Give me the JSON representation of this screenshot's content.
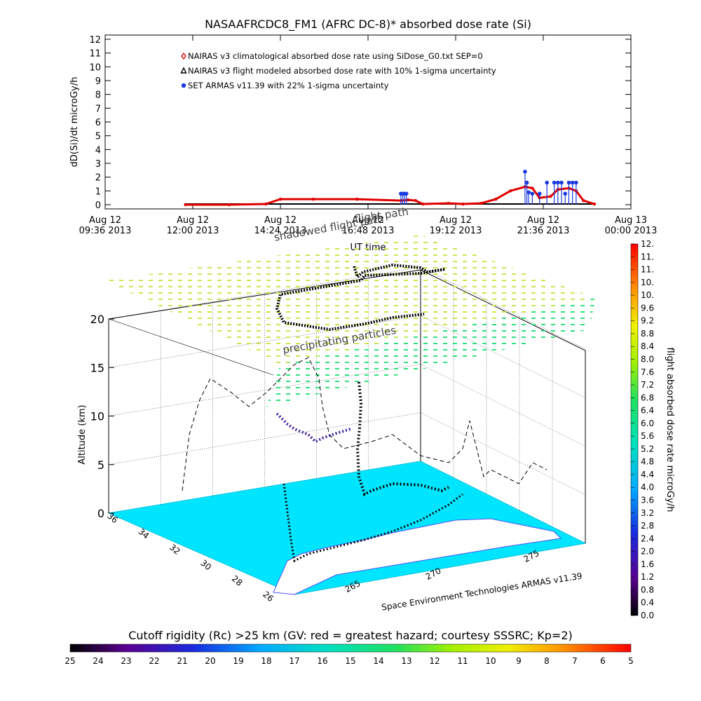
{
  "chart_data": [
    {
      "type": "line",
      "title": "NASAAFRCDC8_FM1 (AFRC DC-8)* absorbed dose rate (Si)",
      "xlabel": "UT time",
      "ylabel": "dD(Si)/dt microGy/h",
      "ylim": [
        0,
        12
      ],
      "y_ticks": [
        "0",
        "1",
        "2",
        "3",
        "4",
        "5",
        "6",
        "7",
        "8",
        "9",
        "10",
        "11",
        "12"
      ],
      "x_ticks": [
        {
          "line1": "Aug 12",
          "line2": "09:36 2013"
        },
        {
          "line1": "Aug 12",
          "line2": "12:00 2013"
        },
        {
          "line1": "Aug 12",
          "line2": "14:24 2013"
        },
        {
          "line1": "Aug 12",
          "line2": "16:48 2013"
        },
        {
          "line1": "Aug 12",
          "line2": "19:12 2013"
        },
        {
          "line1": "Aug 12",
          "line2": "21:36 2013"
        },
        {
          "line1": "Aug 13",
          "line2": "00:00 2013"
        }
      ],
      "x_unit": "hours since Aug 12 00:00 UT",
      "legend": [
        {
          "marker": "diamond",
          "color": "#e00000",
          "label": "NAIRAS v3 climatological absorbed dose rate using SiDose_G0.txt SEP=0"
        },
        {
          "marker": "triangle",
          "color": "#000000",
          "label": "NAIRAS v3 flight modeled absorbed dose rate with 10% 1-sigma uncertainty"
        },
        {
          "marker": "dot",
          "color": "#1a3adf",
          "label": "SET ARMAS v11.39 with 22% 1-sigma uncertainty"
        }
      ],
      "legend_position": "top-left",
      "series": [
        {
          "name": "NAIRAS v3 climatological absorbed dose rate using SiDose_G0.txt SEP=0",
          "color": "#e00000",
          "x": [
            11.8,
            13.0,
            14.0,
            14.4,
            15.3,
            16.5,
            17.7,
            17.9,
            18.1,
            18.3,
            19.0,
            19.4,
            19.9,
            20.3,
            20.7,
            21.1,
            21.3,
            21.5,
            21.8,
            22.0,
            22.3,
            22.5,
            22.7,
            23.0
          ],
          "y": [
            0.0,
            0.0,
            0.05,
            0.4,
            0.4,
            0.4,
            0.3,
            0.35,
            0.3,
            0.05,
            0.1,
            0.05,
            0.1,
            0.4,
            1.0,
            1.3,
            1.2,
            0.5,
            0.6,
            1.1,
            1.2,
            1.0,
            0.3,
            0.05
          ]
        },
        {
          "name": "NAIRAS v3 flight modeled absorbed dose rate with 10% 1-sigma uncertainty",
          "color": "#000000",
          "x": [
            11.8,
            14.0,
            16.0,
            18.0,
            20.0,
            22.0,
            23.0
          ],
          "y": [
            0.05,
            0.05,
            0.05,
            0.05,
            0.05,
            0.05,
            0.05
          ]
        },
        {
          "name": "SET ARMAS v11.39 with 22% 1-sigma uncertainty",
          "color": "#1a3adf",
          "x": [
            17.7,
            17.75,
            17.8,
            17.85,
            21.1,
            21.15,
            21.2,
            21.3,
            21.5,
            21.7,
            21.9,
            22.0,
            22.1,
            22.2,
            22.3,
            22.4,
            22.5
          ],
          "y": [
            0.8,
            0.8,
            0.8,
            0.8,
            2.4,
            1.6,
            0.9,
            0.8,
            0.8,
            1.6,
            1.6,
            1.6,
            1.6,
            0.8,
            1.6,
            1.6,
            1.6
          ]
        }
      ],
      "grid": false
    },
    {
      "type": "scatter",
      "title": "",
      "zlabel": "Altitude (km)",
      "z_ticks": [
        "0",
        "5",
        "10",
        "15",
        "20"
      ],
      "lat_ticks": [
        "36",
        "34",
        "32",
        "30",
        "28",
        "26"
      ],
      "lon_ticks": [
        "265",
        "270",
        "275"
      ],
      "annotations": [
        "flight path",
        "shadowed flight path",
        "precipitating particles"
      ],
      "credit": "Space Environment Technologies ARMAS v11.39",
      "colorbar_right": {
        "label": "flight absorbed dose rate microGy/h",
        "ticks": [
          "0.0",
          "0.4",
          "0.8",
          "1.2",
          "1.6",
          "2.0",
          "2.4",
          "2.8",
          "3.2",
          "3.6",
          "4.0",
          "4.4",
          "4.8",
          "5.2",
          "5.6",
          "6.0",
          "6.4",
          "6.8",
          "7.2",
          "7.6",
          "8.0",
          "8.4",
          "8.8",
          "9.2",
          "9.6",
          "10.",
          "10.",
          "11.",
          "11.",
          "12."
        ]
      },
      "colorbar_bottom": {
        "label": "Cutoff rigidity (Rc) >25 km (GV: red = greatest hazard; courtesy SSSRC; Kp=2)",
        "ticks": [
          "25",
          "24",
          "23",
          "22",
          "21",
          "20",
          "19",
          "18",
          "17",
          "16",
          "15",
          "14",
          "13",
          "12",
          "11",
          "10",
          "9",
          "8",
          "7",
          "6",
          "5"
        ]
      },
      "map_color": "#00e5ff",
      "grid": true
    }
  ]
}
